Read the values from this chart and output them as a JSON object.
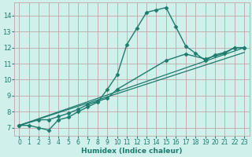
{
  "xlabel": "Humidex (Indice chaleur)",
  "ylabel": "",
  "bg_color": "#cff0eb",
  "grid_color": "#c0a8a8",
  "line_color": "#1e7b6e",
  "xlim": [
    -0.5,
    23.5
  ],
  "ylim": [
    6.5,
    14.8
  ],
  "xticks": [
    0,
    1,
    2,
    3,
    4,
    5,
    6,
    7,
    8,
    9,
    10,
    11,
    12,
    13,
    14,
    15,
    16,
    17,
    18,
    19,
    20,
    21,
    22,
    23
  ],
  "yticks": [
    7,
    8,
    9,
    10,
    11,
    12,
    13,
    14
  ],
  "lines": [
    {
      "x": [
        0,
        1,
        2,
        3,
        4,
        5,
        6,
        7,
        8,
        9,
        10,
        11,
        12,
        13,
        14,
        15,
        16,
        17,
        18,
        19,
        20,
        21,
        22,
        23
      ],
      "y": [
        7.15,
        7.15,
        7.0,
        6.85,
        7.5,
        7.65,
        8.0,
        8.3,
        8.6,
        9.4,
        10.3,
        12.2,
        13.2,
        14.2,
        14.35,
        14.5,
        13.3,
        12.1,
        11.65,
        11.2,
        11.55,
        11.7,
        12.0,
        12.0
      ],
      "marker": "D",
      "markersize": 2.5,
      "linewidth": 1.0,
      "has_markers": true
    },
    {
      "x": [
        0,
        2,
        3,
        4,
        5,
        6,
        7,
        8,
        9,
        10,
        15,
        17,
        19,
        21,
        22,
        23
      ],
      "y": [
        7.15,
        7.5,
        7.5,
        7.7,
        7.9,
        8.15,
        8.45,
        8.65,
        8.85,
        9.4,
        11.2,
        11.6,
        11.3,
        11.65,
        12.0,
        12.0
      ],
      "marker": "D",
      "markersize": 2.5,
      "linewidth": 1.0,
      "has_markers": true
    },
    {
      "x": [
        0,
        23
      ],
      "y": [
        7.15,
        12.0
      ],
      "marker": null,
      "markersize": 0,
      "linewidth": 0.9,
      "has_markers": false
    },
    {
      "x": [
        0,
        23
      ],
      "y": [
        7.15,
        11.7
      ],
      "marker": null,
      "markersize": 0,
      "linewidth": 0.9,
      "has_markers": false
    }
  ]
}
